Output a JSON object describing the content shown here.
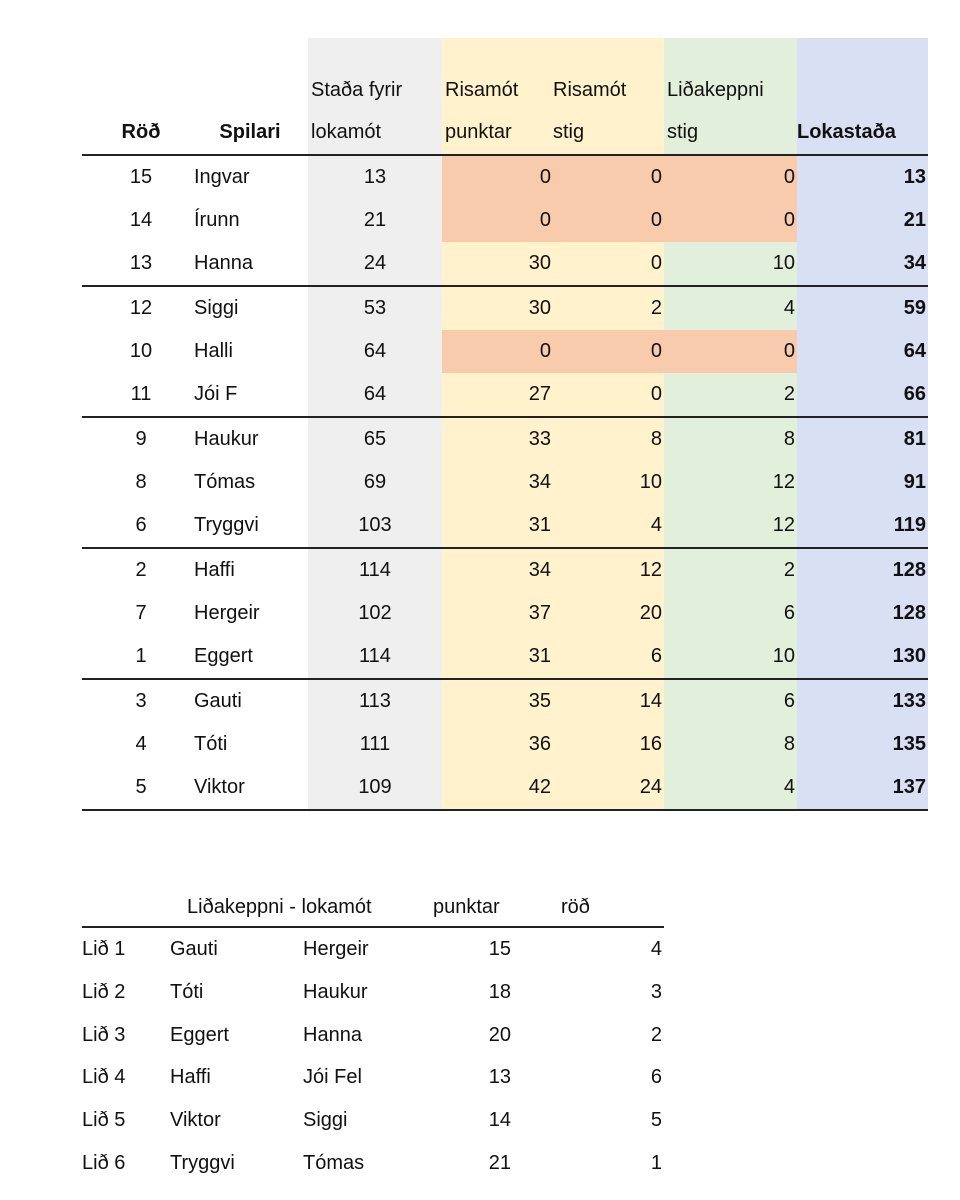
{
  "standings": {
    "headers": {
      "rod": "Röð",
      "spilari": "Spilari",
      "stada_line1": "Staða fyrir",
      "stada_line2": "lokamót",
      "rp_line1": "Risamót",
      "rp_line2": "punktar",
      "rs_line1": "Risamót",
      "rs_line2": "stig",
      "lid_line1": "Liðakeppni",
      "lid_line2": "stig",
      "lokastada": "Lokastaða"
    },
    "rows": [
      {
        "rod": "15",
        "name": "Ingvar",
        "stada": "13",
        "rp": "0",
        "rs": "0",
        "lid": "0",
        "lok": "13"
      },
      {
        "rod": "14",
        "name": "Írunn",
        "stada": "21",
        "rp": "0",
        "rs": "0",
        "lid": "0",
        "lok": "21"
      },
      {
        "rod": "13",
        "name": "Hanna",
        "stada": "24",
        "rp": "30",
        "rs": "0",
        "lid": "10",
        "lok": "34"
      },
      {
        "rod": "12",
        "name": "Siggi",
        "stada": "53",
        "rp": "30",
        "rs": "2",
        "lid": "4",
        "lok": "59"
      },
      {
        "rod": "10",
        "name": "Halli",
        "stada": "64",
        "rp": "0",
        "rs": "0",
        "lid": "0",
        "lok": "64"
      },
      {
        "rod": "11",
        "name": "Jói F",
        "stada": "64",
        "rp": "27",
        "rs": "0",
        "lid": "2",
        "lok": "66"
      },
      {
        "rod": "9",
        "name": "Haukur",
        "stada": "65",
        "rp": "33",
        "rs": "8",
        "lid": "8",
        "lok": "81"
      },
      {
        "rod": "8",
        "name": "Tómas",
        "stada": "69",
        "rp": "34",
        "rs": "10",
        "lid": "12",
        "lok": "91"
      },
      {
        "rod": "6",
        "name": "Tryggvi",
        "stada": "103",
        "rp": "31",
        "rs": "4",
        "lid": "12",
        "lok": "119"
      },
      {
        "rod": "2",
        "name": "Haffi",
        "stada": "114",
        "rp": "34",
        "rs": "12",
        "lid": "2",
        "lok": "128"
      },
      {
        "rod": "7",
        "name": "Hergeir",
        "stada": "102",
        "rp": "37",
        "rs": "20",
        "lid": "6",
        "lok": "128"
      },
      {
        "rod": "1",
        "name": "Eggert",
        "stada": "114",
        "rp": "31",
        "rs": "6",
        "lid": "10",
        "lok": "130"
      },
      {
        "rod": "3",
        "name": "Gauti",
        "stada": "113",
        "rp": "35",
        "rs": "14",
        "lid": "6",
        "lok": "133"
      },
      {
        "rod": "4",
        "name": "Tóti",
        "stada": "111",
        "rp": "36",
        "rs": "16",
        "lid": "8",
        "lok": "135"
      },
      {
        "rod": "5",
        "name": "Viktor",
        "stada": "109",
        "rp": "42",
        "rs": "24",
        "lid": "4",
        "lok": "137"
      }
    ]
  },
  "teams": {
    "header_title": "Liðakeppni - lokamót",
    "header_punktar": "punktar",
    "header_rod": "röð",
    "rows": [
      {
        "lid": "Lið 1",
        "p1": "Gauti",
        "p2": "Hergeir",
        "punktar": "15",
        "rod": "4"
      },
      {
        "lid": "Lið 2",
        "p1": "Tóti",
        "p2": "Haukur",
        "punktar": "18",
        "rod": "3"
      },
      {
        "lid": "Lið 3",
        "p1": "Eggert",
        "p2": "Hanna",
        "punktar": "20",
        "rod": "2"
      },
      {
        "lid": "Lið 4",
        "p1": "Haffi",
        "p2": "Jói Fel",
        "punktar": "13",
        "rod": "6"
      },
      {
        "lid": "Lið 5",
        "p1": "Viktor",
        "p2": "Siggi",
        "punktar": "14",
        "rod": "5"
      },
      {
        "lid": "Lið 6",
        "p1": "Tryggvi",
        "p2": "Tómas",
        "punktar": "21",
        "rod": "1"
      }
    ]
  },
  "colors": {
    "stada_bg": "#efefef",
    "risamot_bg": "#fff2cc",
    "lidakeppni_bg": "#e2efda",
    "lokastada_bg": "#dae0f3",
    "zero_highlight_bg": "#f8cbad"
  }
}
